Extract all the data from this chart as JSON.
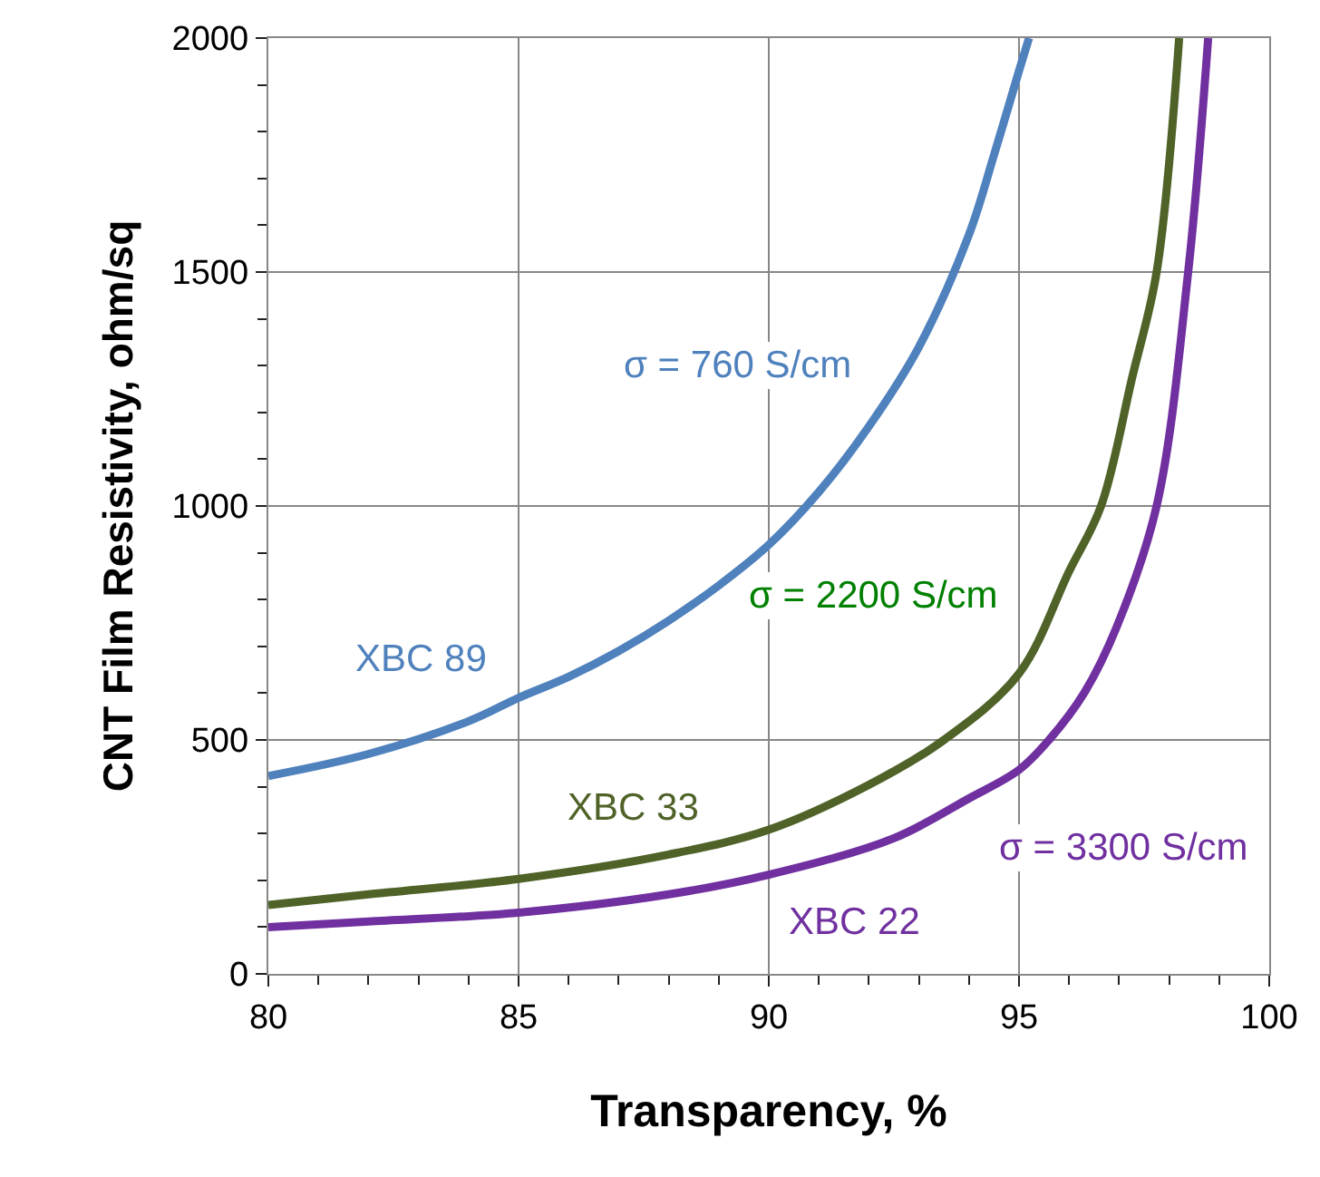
{
  "chart_data": {
    "type": "line",
    "xlabel": "Transparency, %",
    "ylabel": "CNT Film Resistivity, ohm/sq",
    "xlim": [
      80,
      100
    ],
    "xticks": [
      80,
      85,
      90,
      95,
      100
    ],
    "ylim": [
      0,
      2000
    ],
    "yticks": [
      0,
      500,
      1000,
      1500,
      2000
    ],
    "grid": true,
    "legend": false,
    "marker": "none",
    "line_style": "solid",
    "series": [
      {
        "name": "XBC 89",
        "color": "#4f81bd",
        "x": [
          80,
          82,
          84,
          85,
          86,
          87,
          88,
          89,
          90,
          91,
          92,
          93,
          94,
          94.5,
          95,
          95.2
        ],
        "values": [
          423,
          470,
          540,
          590,
          635,
          690,
          755,
          830,
          917,
          1030,
          1170,
          1340,
          1580,
          1750,
          1930,
          2000
        ]
      },
      {
        "name": "XBC 33",
        "color": "#4f6228",
        "x": [
          80,
          82,
          85,
          88,
          90,
          92,
          93.5,
          95,
          96,
          96.64,
          97.26,
          97.75,
          98.2
        ],
        "values": [
          147,
          170,
          203,
          255,
          308,
          404,
          500,
          642,
          860,
          1000,
          1274,
          1500,
          2000
        ]
      },
      {
        "name": "XBC 22",
        "color": "#7030a0",
        "x": [
          80,
          82,
          85,
          88,
          90,
          92.5,
          94,
          95,
          95.6,
          96.3,
          96.95,
          97.75,
          98.38,
          98.78
        ],
        "values": [
          100,
          112,
          131,
          170,
          212,
          290,
          375,
          436,
          500,
          600,
          741,
          1000,
          1500,
          2000
        ]
      }
    ],
    "annotations": [
      "σ = 760 S/cm",
      "σ = 2200 S/cm",
      "σ = 3300 S/cm"
    ]
  }
}
